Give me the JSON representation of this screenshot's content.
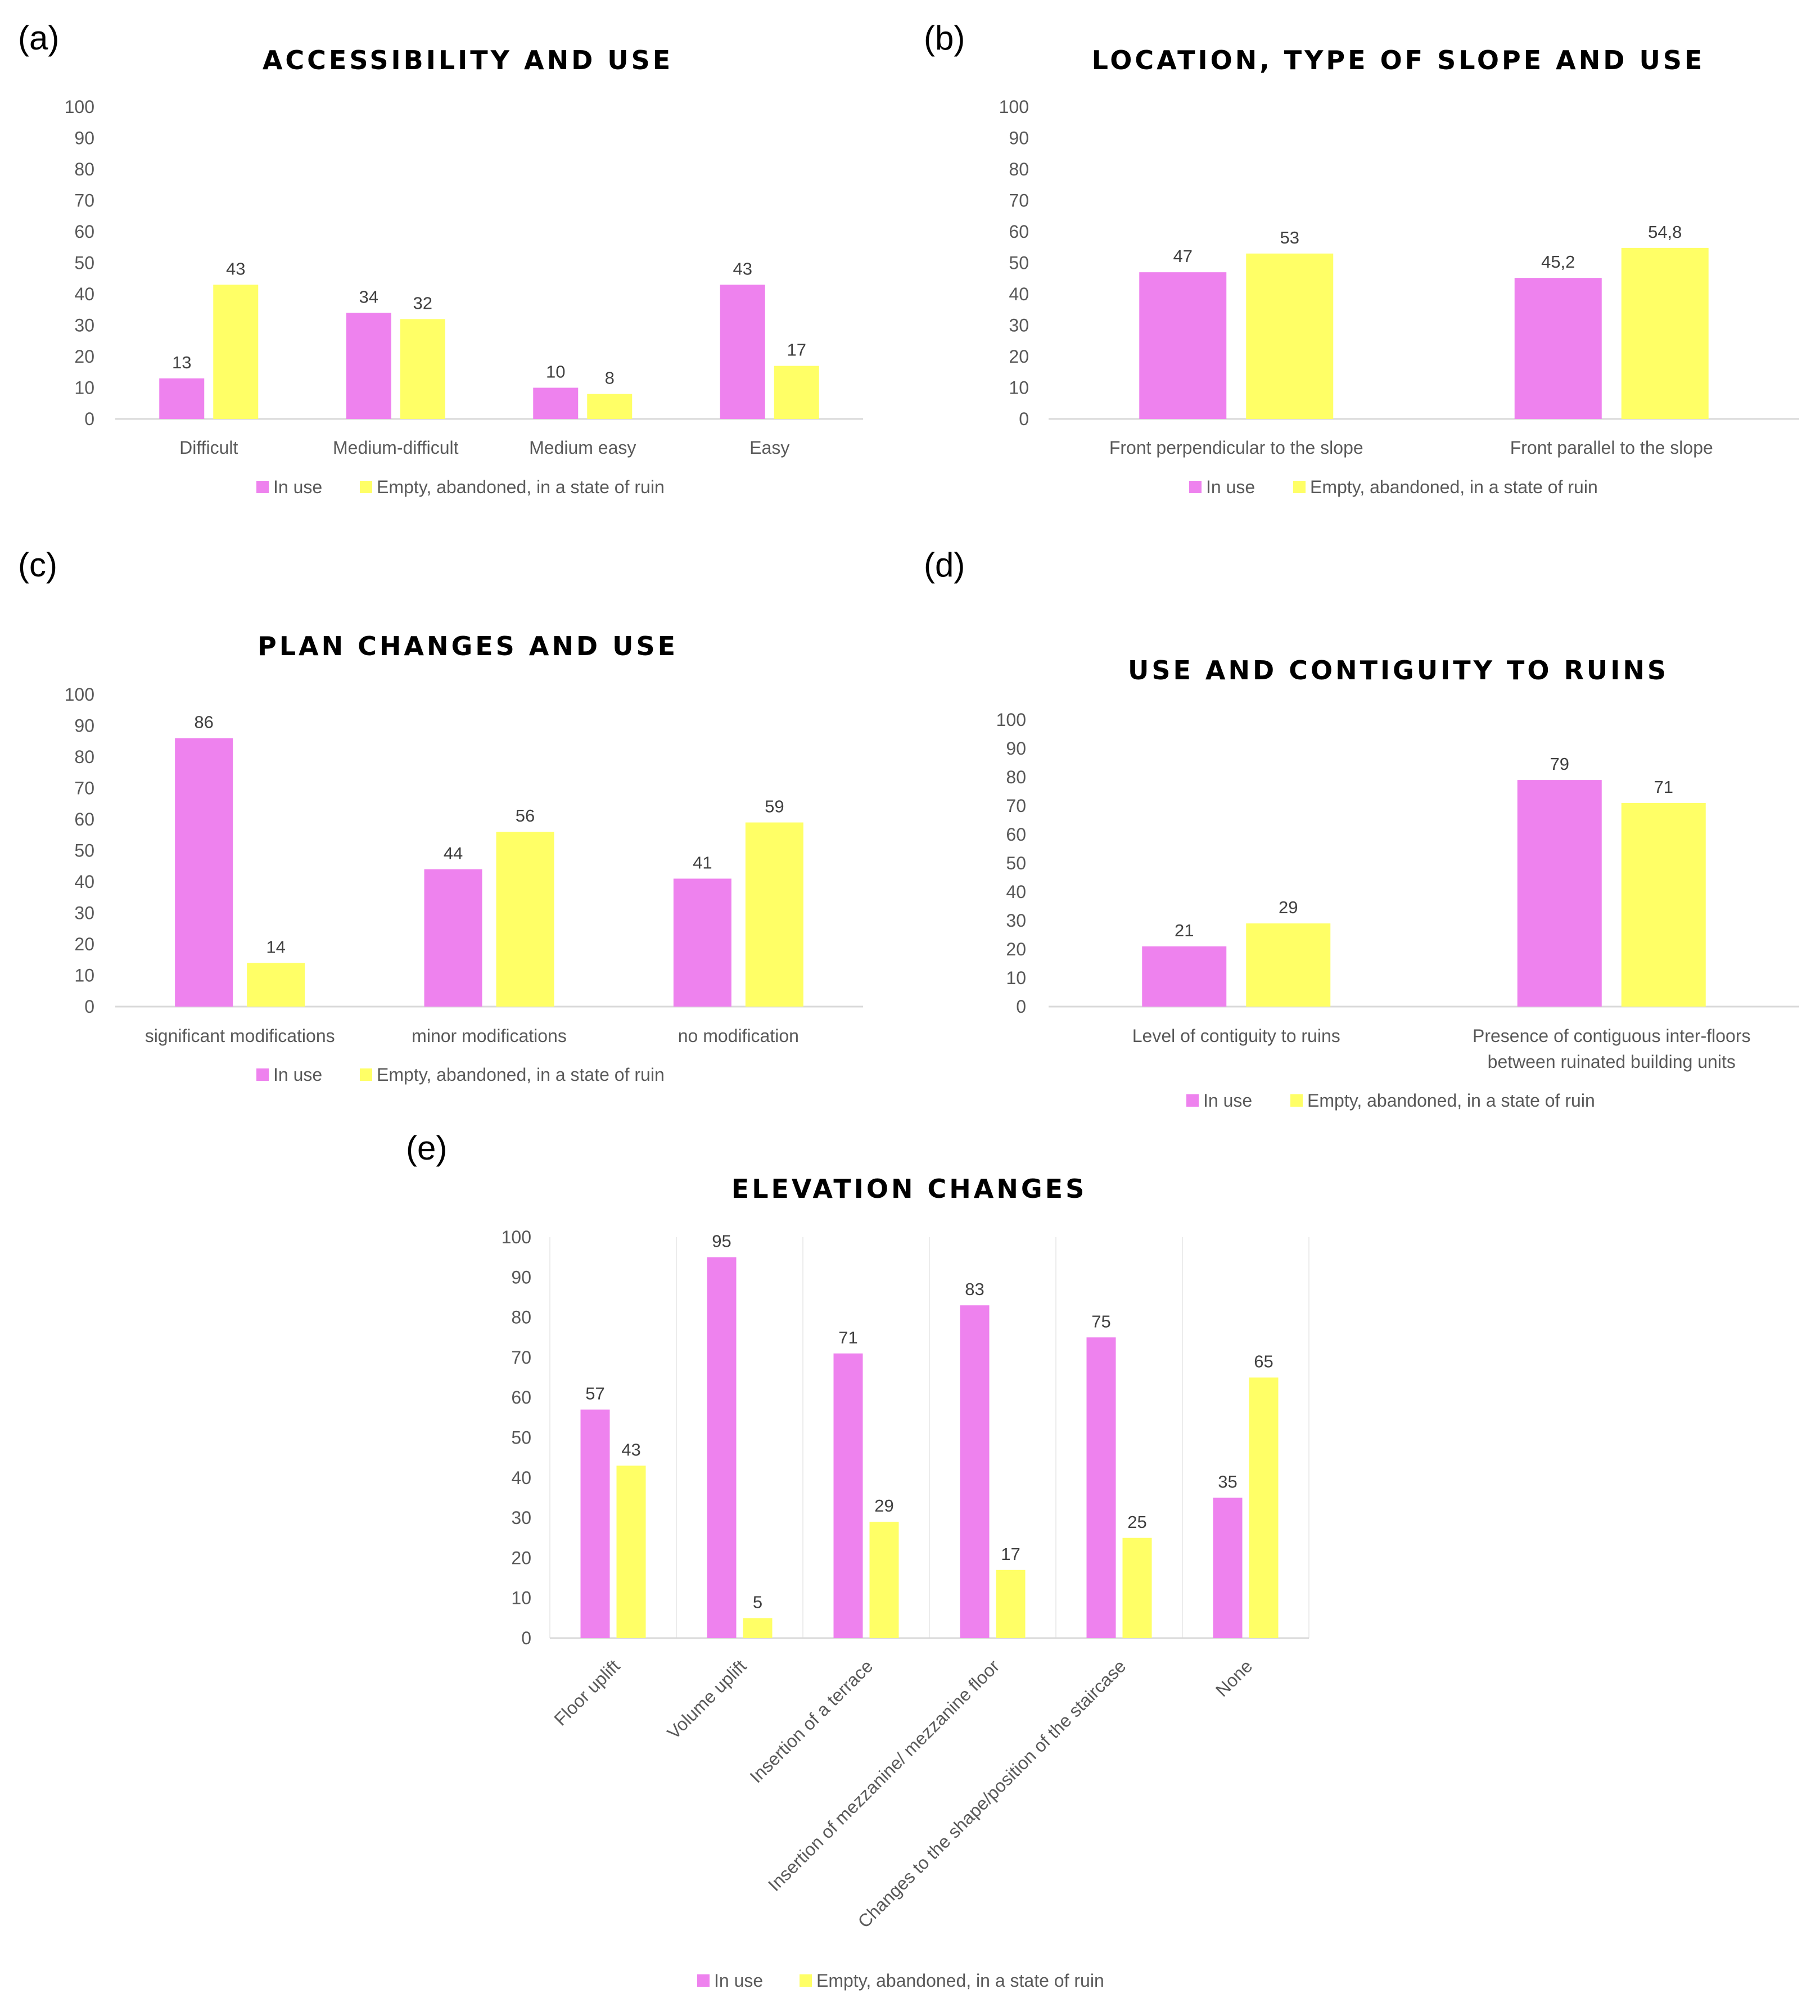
{
  "colors": {
    "in_use": "#ee82ee",
    "empty": "#ffff66"
  },
  "legend": {
    "in_use": "In use",
    "empty": "Empty, abandoned, in a state of ruin"
  },
  "chart_data": [
    {
      "id": "a",
      "panel_label": "(a)",
      "type": "bar",
      "title": "ACCESSIBILITY AND USE",
      "ylim": [
        0,
        100
      ],
      "yticks": [
        0,
        10,
        20,
        30,
        40,
        50,
        60,
        70,
        80,
        90,
        100
      ],
      "categories": [
        [
          "Difficult"
        ],
        [
          "Medium-difficult"
        ],
        [
          "Medium easy"
        ],
        [
          "Easy"
        ]
      ],
      "series": [
        {
          "name": "In use",
          "values": [
            13,
            34,
            10,
            43
          ],
          "labels": [
            "13",
            "34",
            "10",
            "43"
          ]
        },
        {
          "name": "Empty, abandoned, in a state of ruin",
          "values": [
            43,
            32,
            8,
            17
          ],
          "labels": [
            "43",
            "32",
            "8",
            "17"
          ]
        }
      ]
    },
    {
      "id": "b",
      "panel_label": "(b)",
      "type": "bar",
      "title": "LOCATION, TYPE OF SLOPE AND USE",
      "ylim": [
        0,
        100
      ],
      "yticks": [
        0,
        10,
        20,
        30,
        40,
        50,
        60,
        70,
        80,
        90,
        100
      ],
      "categories": [
        [
          "Front perpendicular to the slope"
        ],
        [
          "Front parallel to the slope"
        ]
      ],
      "series": [
        {
          "name": "In use",
          "values": [
            47,
            45.2
          ],
          "labels": [
            "47",
            "45,2"
          ]
        },
        {
          "name": "Empty, abandoned, in a state of ruin",
          "values": [
            53,
            54.8
          ],
          "labels": [
            "53",
            "54,8"
          ]
        }
      ]
    },
    {
      "id": "c",
      "panel_label": "(c)",
      "type": "bar",
      "title": "PLAN CHANGES AND USE",
      "ylim": [
        0,
        100
      ],
      "yticks": [
        0,
        10,
        20,
        30,
        40,
        50,
        60,
        70,
        80,
        90,
        100
      ],
      "categories": [
        [
          "significant modifications"
        ],
        [
          "minor modifications"
        ],
        [
          "no modification"
        ]
      ],
      "series": [
        {
          "name": "In use",
          "values": [
            86,
            44,
            41
          ],
          "labels": [
            "86",
            "44",
            "41"
          ]
        },
        {
          "name": "Empty, abandoned, in a state of ruin",
          "values": [
            14,
            56,
            59
          ],
          "labels": [
            "14",
            "56",
            "59"
          ]
        }
      ]
    },
    {
      "id": "d",
      "panel_label": "(d)",
      "type": "bar",
      "title": "USE AND CONTIGUITY TO RUINS",
      "ylim": [
        0,
        100
      ],
      "yticks": [
        0,
        10,
        20,
        30,
        40,
        50,
        60,
        70,
        80,
        90,
        100
      ],
      "categories": [
        [
          "Level of contiguity to ruins"
        ],
        [
          "Presence of contiguous inter-floors",
          "between ruinated building units"
        ]
      ],
      "series": [
        {
          "name": "In use",
          "values": [
            21,
            79
          ],
          "labels": [
            "21",
            "79"
          ]
        },
        {
          "name": "Empty, abandoned, in a state of ruin",
          "values": [
            29,
            71
          ],
          "labels": [
            "29",
            "71"
          ]
        }
      ]
    },
    {
      "id": "e",
      "panel_label": "(e)",
      "type": "bar",
      "title": "ELEVATION CHANGES",
      "ylim": [
        0,
        100
      ],
      "yticks": [
        0,
        10,
        20,
        30,
        40,
        50,
        60,
        70,
        80,
        90,
        100
      ],
      "categories": [
        [
          "Floor uplift"
        ],
        [
          "Volume uplift"
        ],
        [
          "Insertion of a terrace"
        ],
        [
          "Insertion of mezzanine/ mezzanine floor"
        ],
        [
          "Changes to the shape/position of the staircase"
        ],
        [
          "None"
        ]
      ],
      "series": [
        {
          "name": "In use",
          "values": [
            57,
            95,
            71,
            83,
            75,
            35
          ],
          "labels": [
            "57",
            "95",
            "71",
            "83",
            "75",
            "35"
          ]
        },
        {
          "name": "Empty, abandoned, in a state of ruin",
          "values": [
            43,
            5,
            29,
            17,
            25,
            65
          ],
          "labels": [
            "43",
            "5",
            "29",
            "17",
            "25",
            "65"
          ]
        }
      ]
    }
  ]
}
